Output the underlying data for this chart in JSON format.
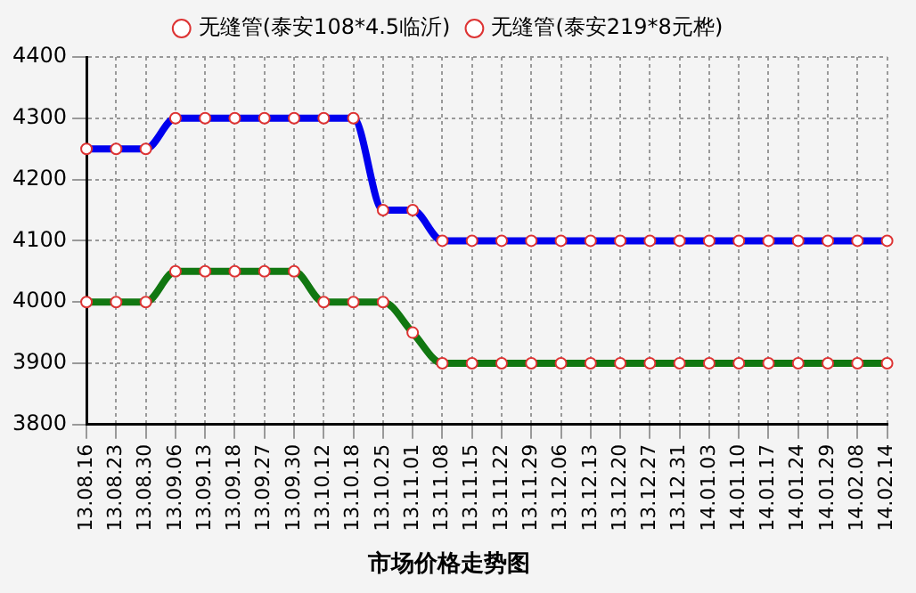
{
  "chart_data": {
    "type": "line",
    "title": "市场价格走势图",
    "categories": [
      "13.08.16",
      "13.08.23",
      "13.08.30",
      "13.09.06",
      "13.09.13",
      "13.09.18",
      "13.09.27",
      "13.09.30",
      "13.10.12",
      "13.10.18",
      "13.10.25",
      "13.11.01",
      "13.11.08",
      "13.11.15",
      "13.11.22",
      "13.11.29",
      "13.12.06",
      "13.12.13",
      "13.12.20",
      "13.12.27",
      "13.12.31",
      "14.01.03",
      "14.01.10",
      "14.01.17",
      "14.01.24",
      "14.01.29",
      "14.02.08",
      "14.02.14"
    ],
    "series": [
      {
        "name": "无缝管(泰安108*4.5临沂)",
        "color": "#117711",
        "values": [
          4000,
          4000,
          4000,
          4050,
          4050,
          4050,
          4050,
          4050,
          4000,
          4000,
          4000,
          3950,
          3900,
          3900,
          3900,
          3900,
          3900,
          3900,
          3900,
          3900,
          3900,
          3900,
          3900,
          3900,
          3900,
          3900,
          3900,
          3900
        ]
      },
      {
        "name": "无缝管(泰安219*8元桦)",
        "color": "#0000ee",
        "values": [
          4250,
          4250,
          4250,
          4300,
          4300,
          4300,
          4300,
          4300,
          4300,
          4300,
          4150,
          4150,
          4100,
          4100,
          4100,
          4100,
          4100,
          4100,
          4100,
          4100,
          4100,
          4100,
          4100,
          4100,
          4100,
          4100,
          4100,
          4100
        ]
      }
    ],
    "ylim": [
      3800,
      4400
    ],
    "yticks": [
      3800,
      3900,
      4000,
      4100,
      4200,
      4300,
      4400
    ],
    "grid": true,
    "legend": "top",
    "marker": "circle",
    "line_style": "solid"
  }
}
